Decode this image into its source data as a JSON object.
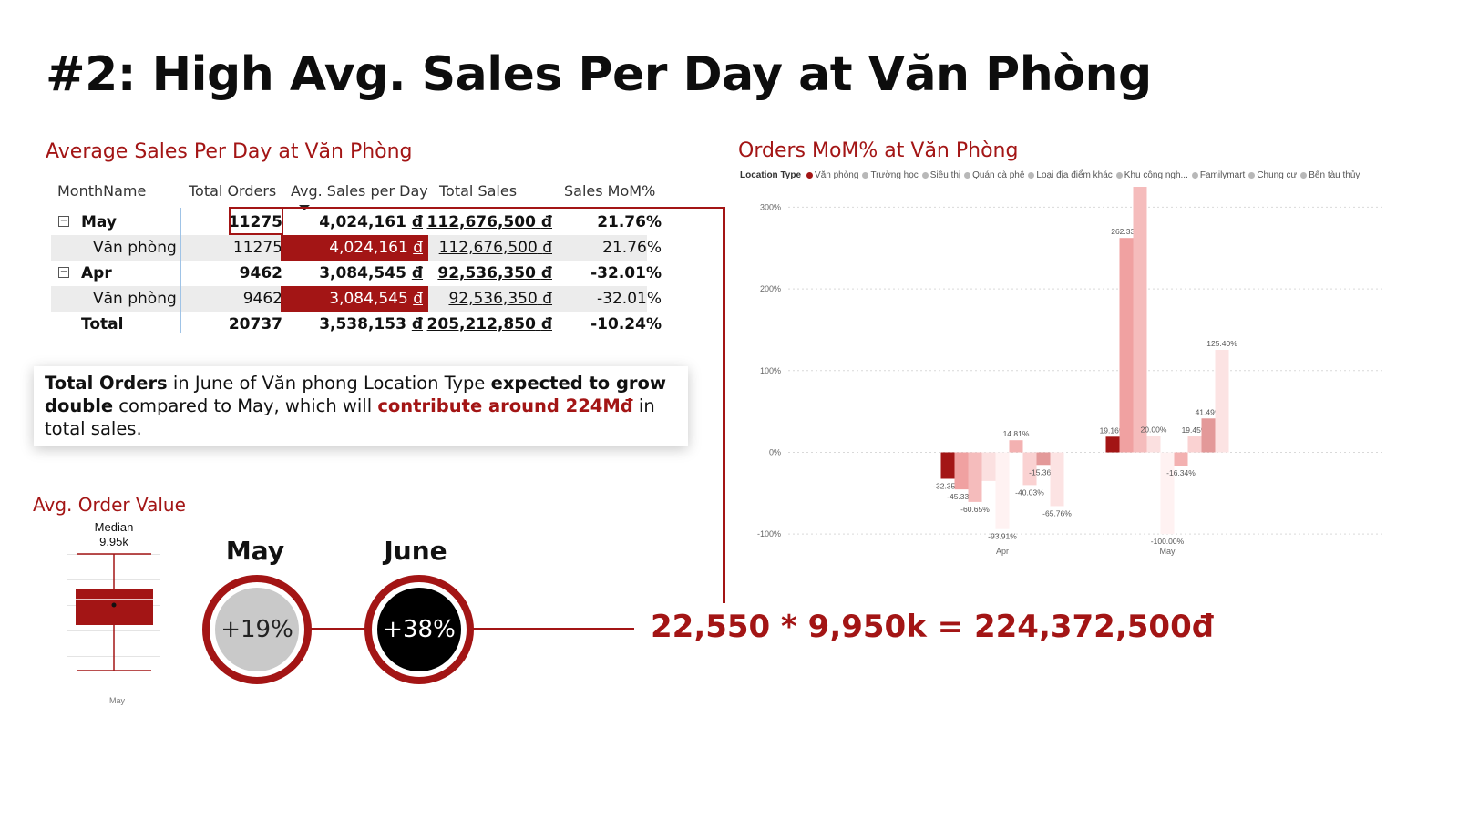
{
  "page": {
    "title": "#2: High Avg. Sales Per Day at Văn Phòng"
  },
  "table": {
    "title": "Average Sales Per Day at Văn Phòng",
    "headers": [
      "MonthName",
      "Total Orders",
      "Avg. Sales per Day",
      "Total Sales",
      "Sales MoM%"
    ],
    "rows": [
      {
        "label": "May",
        "orders": "11275",
        "avg": "4,024,161",
        "total": "112,676,500",
        "mom": "21.76%"
      },
      {
        "label": "Văn phòng",
        "orders": "11275",
        "avg": "4,024,161",
        "total": "112,676,500",
        "mom": "21.76%"
      },
      {
        "label": "Apr",
        "orders": "9462",
        "avg": "3,084,545",
        "total": "92,536,350",
        "mom": "-32.01%"
      },
      {
        "label": "Văn phòng",
        "orders": "9462",
        "avg": "3,084,545",
        "total": "92,536,350",
        "mom": "-32.01%"
      },
      {
        "label": "Total",
        "orders": "20737",
        "avg": "3,538,153",
        "total": "205,212,850",
        "mom": "-10.24%"
      }
    ],
    "currency": "đ",
    "expander": "−"
  },
  "callout": {
    "p1": "Total Orders",
    "p2": " in June of Văn phong Location Type ",
    "p3": "expected to grow double",
    "p4": " compared to May, which will ",
    "p5": "contribute around 224Mđ",
    "p6": " in total sales."
  },
  "aov": {
    "title": "Avg. Order Value",
    "median_label": "Median",
    "median_value": "9.95k",
    "x_label": "May"
  },
  "growth": {
    "may_label": "May",
    "may_value": "+19%",
    "june_label": "June",
    "june_value": "+38%",
    "formula": "22,550 * 9,950k = 224,372,500đ"
  },
  "chart_data": {
    "type": "bar",
    "title": "Orders MoM% at Văn Phòng",
    "legend_title": "Location Type",
    "legend_position": "top",
    "categories": [
      "Apr",
      "May"
    ],
    "ylim": [
      -100,
      325
    ],
    "y_ticks": [
      -100,
      0,
      100,
      200,
      300
    ],
    "y_tick_labels": [
      "-100%",
      "0%",
      "100%",
      "200%",
      "300%"
    ],
    "grid": true,
    "series": [
      {
        "name": "Văn phòng",
        "color": "#a31515",
        "values": [
          -32.35,
          19.16
        ],
        "labels": [
          "-32.35%",
          "19.16%"
        ]
      },
      {
        "name": "Trường học",
        "color": "#f0a1a1",
        "values": [
          -45.33,
          262.33
        ],
        "labels": [
          "-45.33%",
          "262.33%"
        ]
      },
      {
        "name": "Siêu thị",
        "color": "#f5bcbc",
        "values": [
          -60.65,
          325.44
        ],
        "labels": [
          "-60.65%",
          "325.44%"
        ]
      },
      {
        "name": "Quán cà phê",
        "color": "#fbe0e0",
        "values": [
          -35,
          20.0
        ],
        "labels": [
          "",
          "20.00%"
        ]
      },
      {
        "name": "Loại địa điểm khác",
        "color": "#fff2f2",
        "values": [
          -93.91,
          -100.0
        ],
        "labels": [
          "-93.91%",
          "-100.00%"
        ]
      },
      {
        "name": "Khu công ngh...",
        "color": "#f3b1b1",
        "values": [
          14.81,
          -16.34
        ],
        "labels": [
          "14.81%",
          "-16.34%"
        ]
      },
      {
        "name": "Familymart",
        "color": "#fad2d2",
        "values": [
          -40.03,
          19.45
        ],
        "labels": [
          "-40.03%",
          "19.45%"
        ]
      },
      {
        "name": "Chung cư",
        "color": "#e39999",
        "values": [
          -15.36,
          41.49
        ],
        "labels": [
          "-15.36%",
          "41.49%"
        ]
      },
      {
        "name": "Bến tàu thủy",
        "color": "#fce3e3",
        "values": [
          -65.76,
          125.4
        ],
        "labels": [
          "-65.76%",
          "125.40%"
        ]
      }
    ]
  }
}
